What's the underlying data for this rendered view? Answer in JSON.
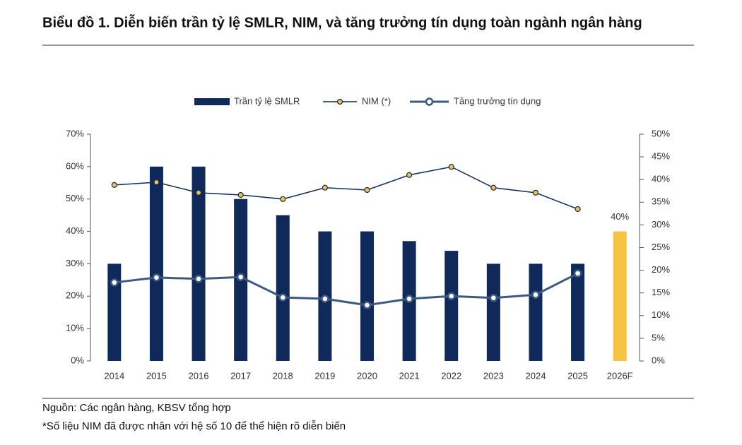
{
  "chart_data": {
    "type": "bar",
    "title": "Biểu đồ 1. Diễn biến trần tỷ lệ SMLR, NIM, và tăng trưởng tín dụng toàn ngành ngân hàng",
    "categories": [
      "2014",
      "2015",
      "2016",
      "2017",
      "2018",
      "2019",
      "2020",
      "2021",
      "2022",
      "2023",
      "2024",
      "2025",
      "2026F"
    ],
    "series": [
      {
        "name": "Trần tỷ lệ SMLR",
        "type": "bar",
        "axis": "y",
        "color": "#0f2a5a",
        "colors": [
          "#0f2a5a",
          "#0f2a5a",
          "#0f2a5a",
          "#0f2a5a",
          "#0f2a5a",
          "#0f2a5a",
          "#0f2a5a",
          "#0f2a5a",
          "#0f2a5a",
          "#0f2a5a",
          "#0f2a5a",
          "#0f2a5a",
          "#f5c242"
        ],
        "values": [
          30,
          60,
          60,
          50,
          45,
          40,
          40,
          37,
          34,
          30,
          30,
          30,
          40
        ],
        "value_labels": [
          null,
          null,
          null,
          null,
          null,
          null,
          null,
          null,
          null,
          null,
          null,
          null,
          "40%"
        ]
      },
      {
        "name": "NIM (*)",
        "type": "line",
        "axis": "y2",
        "color": "#0f2a5a",
        "marker_color": "#f5c242",
        "values": [
          38.8,
          39.4,
          37.1,
          36.6,
          35.7,
          38.2,
          37.7,
          41.0,
          42.8,
          38.2,
          37.1,
          33.5,
          null
        ]
      },
      {
        "name": "Tăng trưởng tín dụng",
        "type": "line",
        "axis": "y2",
        "color": "#3c5a80",
        "marker_color": "#ffffff",
        "values": [
          17.3,
          18.4,
          18.1,
          18.5,
          14.0,
          13.7,
          12.3,
          13.7,
          14.3,
          13.9,
          14.6,
          19.3,
          null
        ]
      }
    ],
    "ylim": [
      0,
      70
    ],
    "yticks": [
      {
        "value": 0,
        "label": "0%"
      },
      {
        "value": 10,
        "label": "10%"
      },
      {
        "value": 20,
        "label": "20%"
      },
      {
        "value": 30,
        "label": "30%"
      },
      {
        "value": 40,
        "label": "40%"
      },
      {
        "value": 50,
        "label": "50%"
      },
      {
        "value": 60,
        "label": "60%"
      },
      {
        "value": 70,
        "label": "70%"
      }
    ],
    "y2lim": [
      0,
      50
    ],
    "y2ticks": [
      {
        "value": 0,
        "label": "0%"
      },
      {
        "value": 5,
        "label": "5%"
      },
      {
        "value": 10,
        "label": "10%"
      },
      {
        "value": 15,
        "label": "15%"
      },
      {
        "value": 20,
        "label": "20%"
      },
      {
        "value": 25,
        "label": "25%"
      },
      {
        "value": 30,
        "label": "30%"
      },
      {
        "value": 35,
        "label": "35%"
      },
      {
        "value": 40,
        "label": "40%"
      },
      {
        "value": 45,
        "label": "45%"
      },
      {
        "value": 50,
        "label": "50%"
      }
    ],
    "source": "Nguồn: Các ngân hàng, KBSV tổng hợp",
    "note": "*Số liệu NIM đã được nhân với hệ số 10 để thể hiện rõ diễn biến"
  }
}
